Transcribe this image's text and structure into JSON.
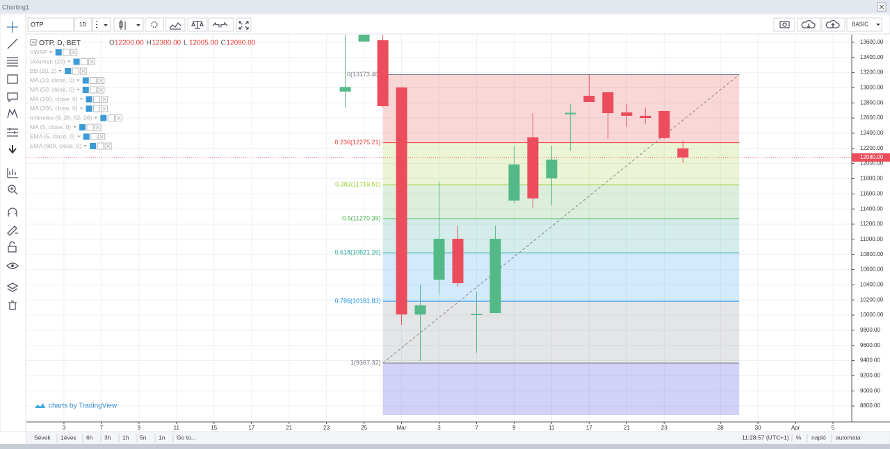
{
  "window_title": "Charting1",
  "toolbar": {
    "symbol": "OTP",
    "interval": "1D",
    "mode": "BASIC"
  },
  "chart_data": {
    "type": "candlestick",
    "legend_title": "OTP, D, BET",
    "ohlc": [
      {
        "key": "O",
        "value": "12200.00"
      },
      {
        "key": "H",
        "value": "12300.00"
      },
      {
        "key": "L",
        "value": "12005.00"
      },
      {
        "key": "C",
        "value": "12080.00"
      }
    ],
    "indicators": [
      "VWAP",
      "Volumen (20)",
      "BB (20, 2)",
      "MA (10, close, 0)",
      "MA (50, close, 0)",
      "MA (100, close, 0)",
      "MA (200, close, 0)",
      "Ichimoku (9, 26, 52, 26)",
      "MA (5, close, 0)",
      "EMA (5, close, 0)",
      "EMA (600, close, 0)"
    ],
    "x": [
      -3,
      -2,
      -1,
      0,
      1,
      2,
      3,
      4,
      5,
      6,
      7,
      8,
      9,
      10,
      11,
      12,
      13,
      14,
      15
    ],
    "open": [
      12950,
      13610,
      13627,
      13004,
      10008,
      10467,
      11007,
      10000,
      10027,
      11511,
      12345,
      11804,
      12650,
      12894,
      12940,
      12675,
      12629,
      12693,
      12200
    ],
    "high": [
      13700,
      13750,
      13700,
      13004,
      10403,
      11758,
      11181,
      10311,
      11181,
      12235,
      12665,
      12235,
      12785,
      13169,
      12940,
      12785,
      12739,
      12693,
      12300
    ],
    "low": [
      12739,
      13610,
      12740,
      9871,
      9395,
      10265,
      10375,
      9505,
      10027,
      11475,
      11410,
      11456,
      12171,
      12812,
      12326,
      12482,
      12528,
      12326,
      12005
    ],
    "close": [
      13010,
      13720,
      12757,
      10008,
      10128,
      11007,
      10421,
      10015,
      11007,
      11987,
      11539,
      12052,
      12670,
      12812,
      12665,
      12629,
      12601,
      12336,
      12080
    ],
    "up_color": "#53b987",
    "down_color": "#eb4d5c",
    "xlim": [
      -20,
      24
    ],
    "xticks": [
      {
        "value": -18,
        "label": "3"
      },
      {
        "value": -16,
        "label": "7"
      },
      {
        "value": -14,
        "label": "9"
      },
      {
        "value": -12,
        "label": "11"
      },
      {
        "value": -10,
        "label": "15"
      },
      {
        "value": -8,
        "label": "17"
      },
      {
        "value": -6,
        "label": "21"
      },
      {
        "value": -4,
        "label": "23"
      },
      {
        "value": -2,
        "label": "25"
      },
      {
        "value": 0,
        "label": "Mar"
      },
      {
        "value": 2,
        "label": "3"
      },
      {
        "value": 4,
        "label": "7"
      },
      {
        "value": 6,
        "label": "9"
      },
      {
        "value": 8,
        "label": "11"
      },
      {
        "value": 10,
        "label": "17"
      },
      {
        "value": 12,
        "label": "21"
      },
      {
        "value": 14,
        "label": "23"
      },
      {
        "value": 17,
        "label": "28"
      },
      {
        "value": 19,
        "label": "30"
      },
      {
        "value": 21,
        "label": "Apr"
      },
      {
        "value": 23,
        "label": "5"
      }
    ],
    "ylim": [
      8590,
      13700
    ],
    "yticks": [
      {
        "value": 8800,
        "label": "8800.00"
      },
      {
        "value": 9000,
        "label": "9000.00"
      },
      {
        "value": 9200,
        "label": "9200.00"
      },
      {
        "value": 9400,
        "label": "9400.00"
      },
      {
        "value": 9600,
        "label": "9600.00"
      },
      {
        "value": 9800,
        "label": "9800.00"
      },
      {
        "value": 10000,
        "label": "10000.00"
      },
      {
        "value": 10200,
        "label": "10200.00"
      },
      {
        "value": 10400,
        "label": "10400.00"
      },
      {
        "value": 10600,
        "label": "10600.00"
      },
      {
        "value": 10800,
        "label": "10800.00"
      },
      {
        "value": 11000,
        "label": "11000.00"
      },
      {
        "value": 11200,
        "label": "11200.00"
      },
      {
        "value": 11400,
        "label": "11400.00"
      },
      {
        "value": 11600,
        "label": "11600.00"
      },
      {
        "value": 11800,
        "label": "11800.00"
      },
      {
        "value": 12000,
        "label": "12000.00"
      },
      {
        "value": 12200,
        "label": "12200.00"
      },
      {
        "value": 12400,
        "label": "12400.00"
      },
      {
        "value": 12600,
        "label": "12600.00"
      },
      {
        "value": 12800,
        "label": "12800.00"
      },
      {
        "value": 13000,
        "label": "13000.00"
      },
      {
        "value": 13200,
        "label": "13200.00"
      },
      {
        "value": 13400,
        "label": "13400.00"
      },
      {
        "value": 13600,
        "label": "13600.00"
      }
    ],
    "grid": true,
    "last_price": {
      "value": 12080,
      "label": "12080.00",
      "color": "#eb4d5c"
    },
    "fibonacci": {
      "start_x": -1,
      "end_x": 18,
      "levels": [
        {
          "value": 13173.46,
          "label": "0(13173.46)",
          "color": "#787b86"
        },
        {
          "value": 12275.21,
          "label": "0.236(12275.21)",
          "color": "#e53935"
        },
        {
          "value": 11719.51,
          "label": "0.382(11719.51)",
          "color": "#9ccc2c"
        },
        {
          "value": 11270.39,
          "label": "0.5(11270.39)",
          "color": "#4caf50"
        },
        {
          "value": 10821.26,
          "label": "0.618(10821.26)",
          "color": "#26a69a"
        },
        {
          "value": 10181.83,
          "label": "0.786(10181.83)",
          "color": "#2196f3"
        },
        {
          "value": 9367.32,
          "label": "1(9367.32)",
          "color": "#787b86"
        }
      ]
    },
    "watermark": "charts by TradingView"
  },
  "bottom_bar": {
    "ranges": [
      "Sévek",
      "1éves",
      "6h",
      "3h",
      "1h",
      "5n",
      "1n",
      "Go to..."
    ],
    "time": "11:28:57 (UTC+1)",
    "options": [
      "%",
      "napló",
      "automata"
    ]
  }
}
